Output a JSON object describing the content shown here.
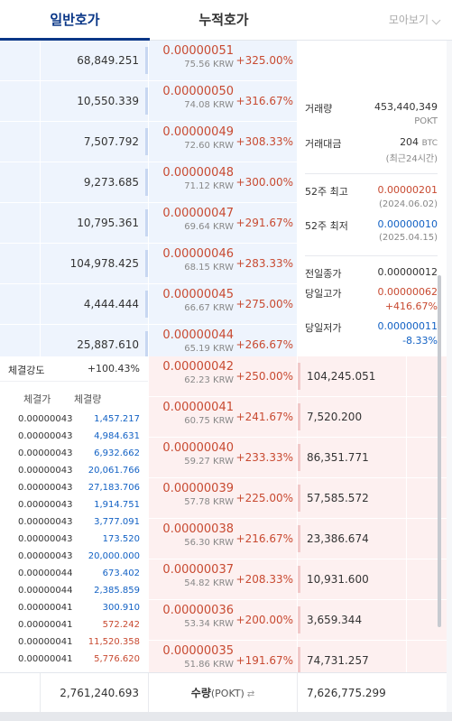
{
  "tabs": [
    {
      "label": "일반호가",
      "active": true
    },
    {
      "label": "누적호가",
      "active": false
    }
  ],
  "group_select": {
    "label": "모아보기"
  },
  "colors": {
    "accent": "#093687",
    "rise": "#c84a31",
    "fall": "#1261c4",
    "ask_bg": "#eef4fd",
    "bid_bg": "#fdf0f0"
  },
  "asks": [
    {
      "volume": "68,849.251",
      "price": "0.00000051",
      "krw": "75.56 KRW",
      "change": "+325.00%"
    },
    {
      "volume": "10,550.339",
      "price": "0.00000050",
      "krw": "74.08 KRW",
      "change": "+316.67%"
    },
    {
      "volume": "7,507.792",
      "price": "0.00000049",
      "krw": "72.60 KRW",
      "change": "+308.33%"
    },
    {
      "volume": "9,273.685",
      "price": "0.00000048",
      "krw": "71.12 KRW",
      "change": "+300.00%"
    },
    {
      "volume": "10,795.361",
      "price": "0.00000047",
      "krw": "69.64 KRW",
      "change": "+291.67%"
    },
    {
      "volume": "104,978.425",
      "price": "0.00000046",
      "krw": "68.15 KRW",
      "change": "+283.33%"
    },
    {
      "volume": "4,444.444",
      "price": "0.00000045",
      "krw": "66.67 KRW",
      "change": "+275.00%"
    },
    {
      "volume": "25,887.610",
      "price": "0.00000044",
      "krw": "65.19 KRW",
      "change": "+266.67%"
    }
  ],
  "bids": [
    {
      "price": "0.00000042",
      "krw": "62.23 KRW",
      "change": "+250.00%",
      "volume": "104,245.051"
    },
    {
      "price": "0.00000041",
      "krw": "60.75 KRW",
      "change": "+241.67%",
      "volume": "7,520.200"
    },
    {
      "price": "0.00000040",
      "krw": "59.27 KRW",
      "change": "+233.33%",
      "volume": "86,351.771"
    },
    {
      "price": "0.00000039",
      "krw": "57.78 KRW",
      "change": "+225.00%",
      "volume": "57,585.572"
    },
    {
      "price": "0.00000038",
      "krw": "56.30 KRW",
      "change": "+216.67%",
      "volume": "23,386.674"
    },
    {
      "price": "0.00000037",
      "krw": "54.82 KRW",
      "change": "+208.33%",
      "volume": "10,931.600"
    },
    {
      "price": "0.00000036",
      "krw": "53.34 KRW",
      "change": "+200.00%",
      "volume": "3,659.344"
    },
    {
      "price": "0.00000035",
      "krw": "51.86 KRW",
      "change": "+191.67%",
      "volume": "74,731.257"
    }
  ],
  "info": {
    "volume_label": "거래량",
    "volume_value": "453,440,349",
    "volume_unit": "POKT",
    "amount_label": "거래대금",
    "amount_value": "204",
    "amount_unit": "BTC",
    "amount_note": "(최근24시간)",
    "high52_label": "52주 최고",
    "high52_value": "0.00000201",
    "high52_date": "(2024.06.02)",
    "low52_label": "52주 최저",
    "low52_value": "0.00000010",
    "low52_date": "(2025.04.15)",
    "prev_close_label": "전일종가",
    "prev_close_value": "0.00000012",
    "day_high_label": "당일고가",
    "day_high_value": "0.00000062",
    "day_high_change": "+416.67%",
    "day_low_label": "당일저가",
    "day_low_value": "0.00000011",
    "day_low_change": "-8.33%"
  },
  "trades": {
    "strength_label": "체결강도",
    "strength_value": "+100.43%",
    "price_header": "체결가",
    "qty_header": "체결량",
    "rows": [
      {
        "price": "0.00000043",
        "qty": "1,457.217",
        "side": "buy"
      },
      {
        "price": "0.00000043",
        "qty": "4,984.631",
        "side": "buy"
      },
      {
        "price": "0.00000043",
        "qty": "6,932.662",
        "side": "buy"
      },
      {
        "price": "0.00000043",
        "qty": "20,061.766",
        "side": "buy"
      },
      {
        "price": "0.00000043",
        "qty": "27,183.706",
        "side": "buy"
      },
      {
        "price": "0.00000043",
        "qty": "1,914.751",
        "side": "buy"
      },
      {
        "price": "0.00000043",
        "qty": "3,777.091",
        "side": "buy"
      },
      {
        "price": "0.00000043",
        "qty": "173.520",
        "side": "buy"
      },
      {
        "price": "0.00000043",
        "qty": "20,000.000",
        "side": "buy"
      },
      {
        "price": "0.00000044",
        "qty": "673.402",
        "side": "buy"
      },
      {
        "price": "0.00000044",
        "qty": "2,385.859",
        "side": "buy"
      },
      {
        "price": "0.00000041",
        "qty": "300.910",
        "side": "buy"
      },
      {
        "price": "0.00000041",
        "qty": "572.242",
        "side": "sell"
      },
      {
        "price": "0.00000041",
        "qty": "11,520.358",
        "side": "sell"
      },
      {
        "price": "0.00000041",
        "qty": "5,776.620",
        "side": "sell"
      }
    ]
  },
  "footer": {
    "ask_total": "2,761,240.693",
    "unit_label": "수량",
    "unit_symbol": "(POKT)",
    "swap_icon_glyph": "⇄",
    "bid_total": "7,626,775.299"
  }
}
